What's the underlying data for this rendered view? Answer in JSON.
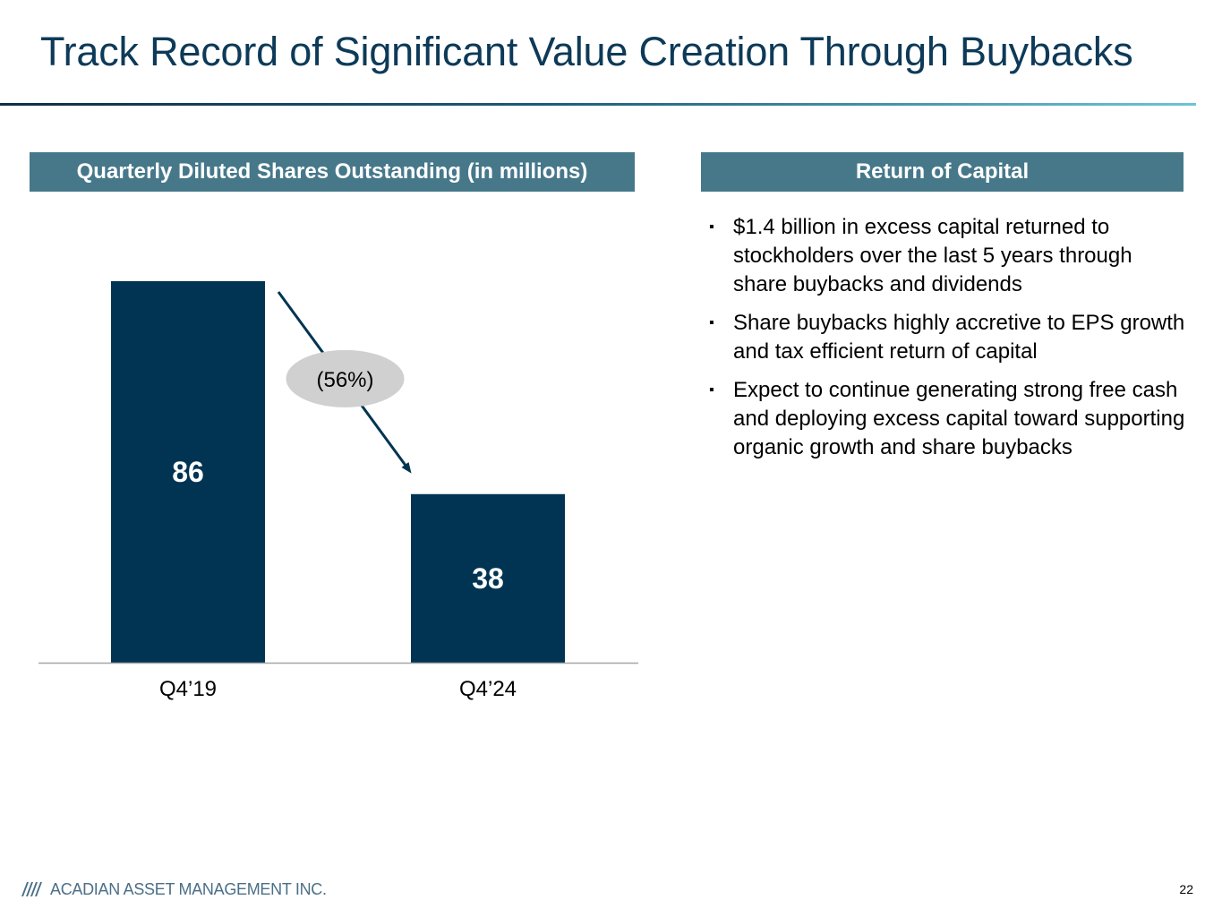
{
  "slide": {
    "title": "Track Record of Significant Value Creation Through Buybacks",
    "page_number": "22"
  },
  "left_panel": {
    "header": "Quarterly Diluted Shares Outstanding (in millions)"
  },
  "right_panel": {
    "header": "Return of Capital",
    "bullet_marker": "▪",
    "bullets": [
      "$1.4 billion in excess capital returned to stockholders over the last 5 years through share buybacks and dividends",
      "Share buybacks highly accretive to EPS growth and tax efficient return of capital",
      "Expect to continue generating strong free cash and deploying excess capital toward supporting organic growth and share buybacks"
    ]
  },
  "chart_data": {
    "type": "bar",
    "categories": [
      "Q4’19",
      "Q4’24"
    ],
    "values": [
      86,
      38
    ],
    "data_labels": [
      "86",
      "38"
    ],
    "title": "Quarterly Diluted Shares Outstanding (in millions)",
    "xlabel": "",
    "ylabel": "",
    "ylim": [
      0,
      86
    ],
    "grid": false,
    "bar_color": "#003452",
    "annotation": {
      "text": "(56%)",
      "from_category": "Q4’19",
      "to_category": "Q4’24"
    }
  },
  "footer": {
    "company": "ACADIAN ASSET MANAGEMENT INC.",
    "logo_icon": "acadian-stripes-logo",
    "logo_color": "#4a6f88"
  },
  "colors": {
    "title": "#0d3a58",
    "header_bg": "#46788a",
    "bar": "#003452",
    "annotation_bubble": "#d0d0d0"
  }
}
